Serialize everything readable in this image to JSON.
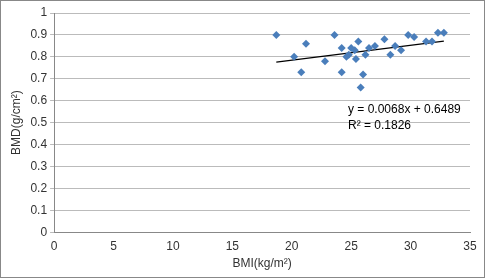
{
  "chart_data": {
    "type": "scatter",
    "x_label": "BMI(kg/m²)",
    "y_label": "BMD(g/cm²)",
    "annotations": [
      "y = 0.0068x + 0.6489",
      "R² = 0.1826"
    ],
    "series": [
      {
        "type": "scatter",
        "color": "#4a7ebb",
        "marker": "diamond",
        "x": [
          18.7,
          20.2,
          20.8,
          21.2,
          22.8,
          23.6,
          24.2,
          24.2,
          24.6,
          24.8,
          25.0,
          25.3,
          25.4,
          25.6,
          25.8,
          26.0,
          26.2,
          26.5,
          27.0,
          27.8,
          28.3,
          28.7,
          29.2,
          29.8,
          30.3,
          31.3,
          31.8,
          32.3,
          32.8
        ],
        "values": [
          0.9,
          0.8,
          0.73,
          0.86,
          0.78,
          0.9,
          0.84,
          0.73,
          0.8,
          0.81,
          0.84,
          0.83,
          0.79,
          0.87,
          0.66,
          0.72,
          0.81,
          0.84,
          0.85,
          0.88,
          0.81,
          0.85,
          0.83,
          0.9,
          0.89,
          0.87,
          0.87,
          0.91,
          0.91
        ]
      },
      {
        "type": "line",
        "color": "#000000",
        "line_style": "solid",
        "x": [
          18.7,
          32.8
        ],
        "values": [
          0.776,
          0.872
        ]
      }
    ],
    "xlim": [
      0,
      35
    ],
    "xticks": [
      0,
      5,
      10,
      15,
      20,
      25,
      30,
      35
    ],
    "ylim": [
      0,
      1
    ],
    "yticks": [
      0,
      0.1,
      0.2,
      0.3,
      0.4,
      0.5,
      0.6,
      0.7,
      0.8,
      0.9,
      1
    ],
    "grid": true,
    "legend": false
  }
}
